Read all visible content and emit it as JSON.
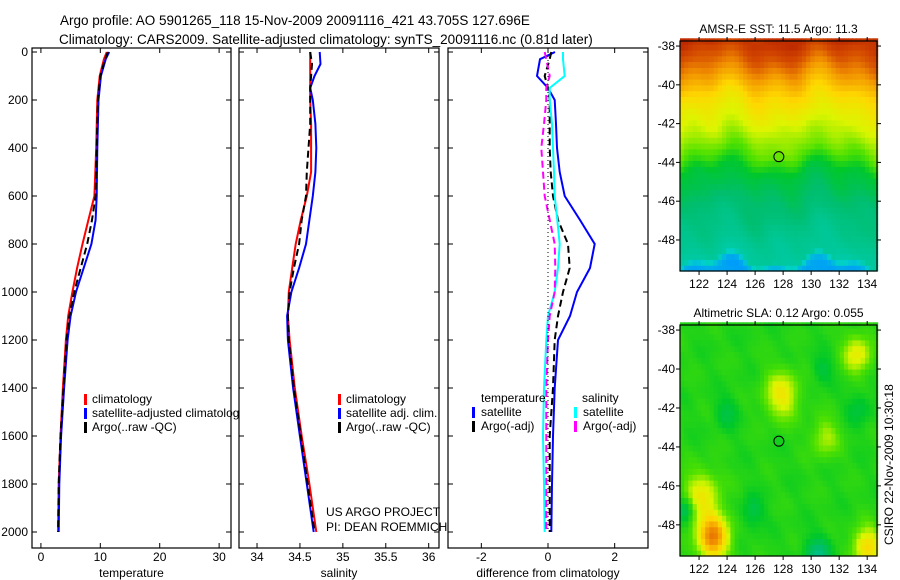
{
  "header": {
    "title_line1": "Argo profile: AO 5901265_118 15-Nov-2009 20091116_421 43.705S 127.696E",
    "title_line2": "Climatology: CARS2009. Satellite-adjusted climatology: synTS_20091116.nc (0.81d later)"
  },
  "credits": {
    "project": "US ARGO PROJECT",
    "pi": "PI: DEAN ROEMMICH",
    "stamp": "CSIRO 22-Nov-2009 10:30:18"
  },
  "colors": {
    "climatology": "#ff0000",
    "satellite": "#0000ff",
    "argo": "#000000",
    "salinity_satellite": "#00ffff",
    "salinity_argo": "#ff00ff"
  },
  "chart_data": [
    {
      "type": "line",
      "id": "temperature",
      "xlabel": "temperature",
      "xlim": [
        -1.5,
        32
      ],
      "xticks": [
        "0",
        "10",
        "20",
        "30"
      ],
      "xtick_values": [
        0,
        10,
        20,
        30
      ],
      "ylabel": "",
      "ylim": [
        0,
        2070
      ],
      "y_reversed": true,
      "yticks": [
        "0",
        "200",
        "400",
        "600",
        "800",
        "1000",
        "1200",
        "1400",
        "1600",
        "1800",
        "2000"
      ],
      "ytick_values": [
        0,
        200,
        400,
        600,
        800,
        1000,
        1200,
        1400,
        1600,
        1800,
        2000
      ],
      "legend": [
        "climatology",
        "satellite-adjusted climatology",
        "Argo(..raw -QC)"
      ],
      "depth": [
        0,
        30,
        100,
        200,
        400,
        600,
        700,
        800,
        900,
        1000,
        1100,
        1200,
        1400,
        1600,
        1800,
        2000
      ],
      "series": [
        {
          "name": "climatology",
          "style": "solid",
          "color_key": "climatology",
          "values": [
            11.1,
            10.6,
            9.9,
            9.5,
            9.3,
            9.0,
            8.0,
            7.0,
            6.1,
            5.3,
            4.6,
            4.2,
            3.7,
            3.3,
            3.0,
            2.9
          ]
        },
        {
          "name": "satellite-adjusted climatology",
          "style": "solid",
          "color_key": "satellite",
          "values": [
            11.5,
            10.9,
            10.1,
            9.7,
            9.5,
            9.4,
            9.2,
            8.5,
            7.2,
            5.9,
            5.0,
            4.5,
            3.9,
            3.4,
            3.1,
            3.0
          ]
        },
        {
          "name": "Argo(..raw -QC)",
          "style": "dashed",
          "color_key": "argo",
          "values": [
            11.3,
            10.8,
            10.0,
            9.6,
            9.4,
            9.2,
            8.6,
            7.8,
            6.7,
            5.6,
            4.8,
            4.3,
            3.8,
            3.3,
            3.0,
            2.9
          ]
        }
      ]
    },
    {
      "type": "line",
      "id": "salinity",
      "xlabel": "salinity",
      "xlim": [
        33.79,
        36.12
      ],
      "xticks": [
        "34",
        "34.5",
        "35",
        "35.5",
        "36"
      ],
      "xtick_values": [
        34,
        34.5,
        35,
        35.5,
        36
      ],
      "ylim": [
        0,
        2070
      ],
      "y_reversed": true,
      "ytick_values": [
        0,
        200,
        400,
        600,
        800,
        1000,
        1200,
        1400,
        1600,
        1800,
        2000
      ],
      "legend": [
        "climatology",
        "satellite adj. clim.",
        "Argo(..raw -QC)"
      ],
      "depth": [
        0,
        50,
        100,
        150,
        200,
        300,
        400,
        500,
        600,
        700,
        800,
        900,
        1000,
        1100,
        1200,
        1400,
        1600,
        1800,
        2000
      ],
      "series": [
        {
          "name": "climatology",
          "style": "solid",
          "color_key": "climatology",
          "values": [
            34.62,
            34.62,
            34.62,
            34.62,
            34.62,
            34.63,
            34.63,
            34.63,
            34.58,
            34.51,
            34.45,
            34.41,
            34.37,
            34.36,
            34.38,
            34.44,
            34.52,
            34.61,
            34.69
          ]
        },
        {
          "name": "satellite adj. clim.",
          "style": "solid",
          "color_key": "satellite",
          "values": [
            34.73,
            34.74,
            34.67,
            34.62,
            34.65,
            34.68,
            34.69,
            34.68,
            34.65,
            34.61,
            34.57,
            34.49,
            34.4,
            34.35,
            34.36,
            34.42,
            34.5,
            34.58,
            34.66
          ]
        },
        {
          "name": "Argo(..raw -QC)",
          "style": "dashed",
          "color_key": "argo",
          "values": [
            34.62,
            34.64,
            34.63,
            34.62,
            34.62,
            34.62,
            34.6,
            34.58,
            34.57,
            34.52,
            34.49,
            34.43,
            34.38,
            34.36,
            34.37,
            34.43,
            34.51,
            34.59,
            34.67
          ]
        }
      ]
    },
    {
      "type": "line",
      "id": "difference",
      "xlabel": "difference from climatology",
      "xlim": [
        -3,
        3
      ],
      "xticks": [
        "-2",
        "0",
        "2"
      ],
      "xtick_values": [
        -2,
        0,
        2
      ],
      "ylim": [
        0,
        2070
      ],
      "y_reversed": true,
      "ytick_values": [
        0,
        200,
        400,
        600,
        800,
        1000,
        1200,
        1400,
        1600,
        1800,
        2000
      ],
      "legend_groups": [
        {
          "title": "temperature",
          "items": [
            "satellite",
            "Argo(-adj)"
          ]
        },
        {
          "title": "salinity",
          "items": [
            "satellite",
            "Argo(-adj)"
          ]
        }
      ],
      "depth": [
        0,
        30,
        100,
        150,
        200,
        300,
        400,
        500,
        600,
        700,
        800,
        900,
        1000,
        1100,
        1200,
        1400,
        1600,
        1800,
        2000
      ],
      "series": [
        {
          "name": "temperature satellite",
          "style": "solid",
          "color_key": "satellite",
          "values": [
            0.21,
            -0.24,
            -0.33,
            0.0,
            0.2,
            0.24,
            0.27,
            0.35,
            0.5,
            0.96,
            1.4,
            1.26,
            0.87,
            0.66,
            0.3,
            0.2,
            0.15,
            0.12,
            0.1
          ]
        },
        {
          "name": "temperature Argo(-adj)",
          "style": "dashed",
          "color_key": "argo",
          "values": [
            0.1,
            0.05,
            -0.1,
            0.0,
            0.05,
            0.05,
            0.05,
            0.08,
            0.15,
            0.3,
            0.6,
            0.65,
            0.45,
            0.3,
            0.2,
            0.15,
            0.05,
            0.05,
            0.05
          ]
        },
        {
          "name": "salinity satellite",
          "style": "solid",
          "color_key": "salinity_satellite",
          "values": [
            0.45,
            0.45,
            0.5,
            0.05,
            0.05,
            0.12,
            0.15,
            0.18,
            0.2,
            0.28,
            0.35,
            0.3,
            0.2,
            0.0,
            -0.05,
            -0.12,
            -0.15,
            -0.12,
            -0.1
          ]
        },
        {
          "name": "salinity Argo(-adj)",
          "style": "dashed",
          "color_key": "salinity_argo",
          "values": [
            -0.1,
            -0.05,
            0.05,
            -0.05,
            -0.05,
            -0.12,
            -0.2,
            -0.15,
            -0.1,
            0.05,
            0.2,
            0.22,
            0.2,
            0.05,
            0.0,
            -0.05,
            -0.05,
            -0.05,
            -0.05
          ]
        },
        {
          "name": "zero",
          "style": "dotted",
          "color_key": "argo",
          "values": [
            0,
            0,
            0,
            0,
            0,
            0,
            0,
            0,
            0,
            0,
            0,
            0,
            0,
            0,
            0,
            0,
            0,
            0,
            0
          ]
        }
      ]
    },
    {
      "type": "heatmap",
      "id": "sst",
      "title": "AMSR-E SST: 11.5 Argo: 11.3",
      "xlim": [
        120.64,
        134.7
      ],
      "ylim": [
        -49.6,
        -37.74
      ],
      "xticks": [
        "122",
        "124",
        "126",
        "128",
        "130",
        "132",
        "134"
      ],
      "xtick_values": [
        122,
        124,
        126,
        128,
        130,
        132,
        134
      ],
      "yticks": [
        "-38",
        "-40",
        "-42",
        "-44",
        "-46",
        "-48"
      ],
      "ytick_values": [
        -38,
        -40,
        -42,
        -44,
        -46,
        -48
      ],
      "marker": {
        "lon": 127.696,
        "lat": -43.705
      }
    },
    {
      "type": "heatmap",
      "id": "sla",
      "title": "Altimetric SLA: 0.12 Argo: 0.055",
      "xlim": [
        120.64,
        134.7
      ],
      "ylim": [
        -49.6,
        -37.74
      ],
      "xticks": [
        "122",
        "124",
        "126",
        "128",
        "130",
        "132",
        "134"
      ],
      "xtick_values": [
        122,
        124,
        126,
        128,
        130,
        132,
        134
      ],
      "yticks": [
        "-38",
        "-40",
        "-42",
        "-44",
        "-46",
        "-48"
      ],
      "ytick_values": [
        -38,
        -40,
        -42,
        -44,
        -46,
        -48
      ],
      "marker": {
        "lon": 127.696,
        "lat": -43.705
      }
    }
  ]
}
